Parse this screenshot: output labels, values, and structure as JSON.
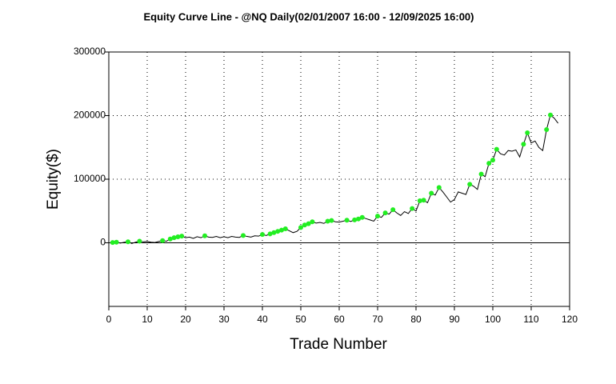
{
  "chart_data": {
    "type": "line",
    "title": "Equity Curve Line - @NQ Daily(02/01/2007 16:00 - 12/09/2025 16:00)",
    "x_label": "Trade Number",
    "y_label": "Equity($)",
    "xlim": [
      0,
      120
    ],
    "xticks": [
      0,
      10,
      20,
      30,
      40,
      50,
      60,
      70,
      80,
      90,
      100,
      110,
      120
    ],
    "ylim": [
      -100000,
      300000
    ],
    "yticks": [
      0,
      100000,
      200000,
      300000
    ],
    "grid": true,
    "line_color": "#000000",
    "high_marker_color": "#22ee22",
    "x": [
      1,
      2,
      3,
      4,
      5,
      6,
      7,
      8,
      9,
      10,
      11,
      12,
      13,
      14,
      15,
      16,
      17,
      18,
      19,
      20,
      21,
      22,
      23,
      24,
      25,
      26,
      27,
      28,
      29,
      30,
      31,
      32,
      33,
      34,
      35,
      36,
      37,
      38,
      39,
      40,
      41,
      42,
      43,
      44,
      45,
      46,
      47,
      48,
      49,
      50,
      51,
      52,
      53,
      54,
      55,
      56,
      57,
      58,
      59,
      60,
      61,
      62,
      63,
      64,
      65,
      66,
      67,
      68,
      69,
      70,
      71,
      72,
      73,
      74,
      75,
      76,
      77,
      78,
      79,
      80,
      81,
      82,
      83,
      84,
      85,
      86,
      87,
      88,
      89,
      90,
      91,
      92,
      93,
      94,
      95,
      96,
      97,
      98,
      99,
      100,
      101,
      102,
      103,
      104,
      105,
      106,
      107,
      108,
      109,
      110,
      111,
      112,
      113,
      114,
      115,
      116,
      117
    ],
    "values": [
      500,
      1000,
      -500,
      800,
      1500,
      -1000,
      1000,
      2500,
      1500,
      2000,
      1000,
      500,
      2000,
      3500,
      2500,
      6000,
      8000,
      9500,
      10500,
      8000,
      9000,
      7000,
      9500,
      8000,
      11000,
      9000,
      8500,
      10000,
      8000,
      9500,
      8000,
      10000,
      9000,
      8500,
      11500,
      10000,
      9000,
      11000,
      10500,
      13000,
      11500,
      14000,
      16000,
      18000,
      20000,
      22000,
      19000,
      16000,
      18000,
      24000,
      28000,
      30000,
      33000,
      31000,
      32000,
      30500,
      34000,
      35000,
      33000,
      32500,
      34000,
      35500,
      33500,
      36000,
      37500,
      40000,
      38000,
      36000,
      34000,
      42000,
      40000,
      47000,
      45000,
      52000,
      47000,
      43000,
      49000,
      46000,
      54000,
      50000,
      66000,
      67000,
      63000,
      78000,
      75000,
      87000,
      80000,
      72000,
      64000,
      68000,
      80000,
      78000,
      76000,
      92000,
      89000,
      84000,
      108000,
      104000,
      125000,
      130000,
      147000,
      140000,
      138000,
      145000,
      144000,
      146000,
      135000,
      155000,
      173000,
      157000,
      160000,
      150000,
      145000,
      178000,
      201000,
      196000,
      188000
    ]
  }
}
